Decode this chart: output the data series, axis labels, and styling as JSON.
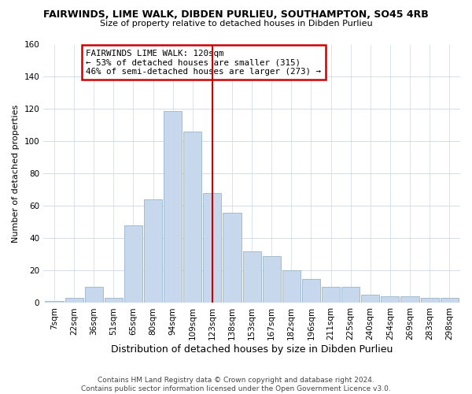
{
  "title": "FAIRWINDS, LIME WALK, DIBDEN PURLIEU, SOUTHAMPTON, SO45 4RB",
  "subtitle": "Size of property relative to detached houses in Dibden Purlieu",
  "xlabel": "Distribution of detached houses by size in Dibden Purlieu",
  "ylabel": "Number of detached properties",
  "bar_labels": [
    "7sqm",
    "22sqm",
    "36sqm",
    "51sqm",
    "65sqm",
    "80sqm",
    "94sqm",
    "109sqm",
    "123sqm",
    "138sqm",
    "153sqm",
    "167sqm",
    "182sqm",
    "196sqm",
    "211sqm",
    "225sqm",
    "240sqm",
    "254sqm",
    "269sqm",
    "283sqm",
    "298sqm"
  ],
  "bar_values": [
    1,
    3,
    10,
    3,
    48,
    64,
    119,
    106,
    68,
    56,
    32,
    29,
    20,
    15,
    10,
    10,
    5,
    4,
    4,
    3,
    3
  ],
  "bar_color": "#c8d8ec",
  "bar_edge_color": "#9ab5cc",
  "vline_x_idx": 8,
  "vline_color": "#cc0000",
  "annotation_text": "FAIRWINDS LIME WALK: 120sqm\n← 53% of detached houses are smaller (315)\n46% of semi-detached houses are larger (273) →",
  "annotation_box_color": "#ffffff",
  "annotation_box_edge": "#cc0000",
  "ylim": [
    0,
    160
  ],
  "yticks": [
    0,
    20,
    40,
    60,
    80,
    100,
    120,
    140,
    160
  ],
  "footer": "Contains HM Land Registry data © Crown copyright and database right 2024.\nContains public sector information licensed under the Open Government Licence v3.0.",
  "bg_color": "#ffffff",
  "grid_color": "#ccd8e4",
  "title_fontsize": 9,
  "subtitle_fontsize": 8,
  "xlabel_fontsize": 9,
  "ylabel_fontsize": 8,
  "tick_fontsize": 7.5,
  "footer_fontsize": 6.5
}
